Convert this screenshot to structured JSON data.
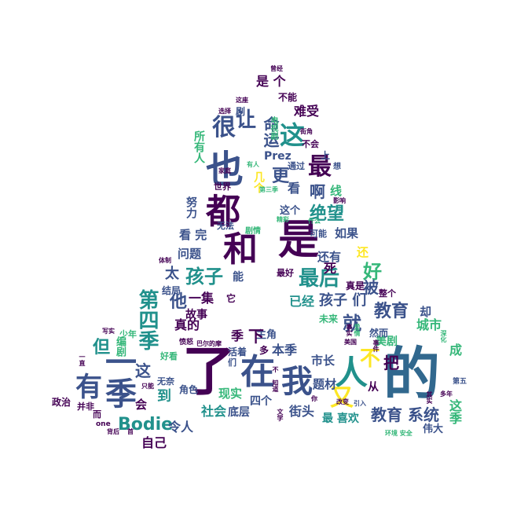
{
  "title": "",
  "palette": {
    "dark_purple": "#440154",
    "indigo": "#3b528b",
    "blue": "#31688e",
    "teal": "#21918c",
    "green": "#35b779",
    "lime": "#90d743",
    "yellow": "#fde725"
  },
  "words": [
    {
      "text": "的",
      "color": "#31688e"
    },
    {
      "text": "了",
      "color": "#440154"
    },
    {
      "text": "是",
      "color": "#440154"
    },
    {
      "text": "和",
      "color": "#440154"
    },
    {
      "text": "都",
      "color": "#440154"
    },
    {
      "text": "也",
      "color": "#3b528b"
    },
    {
      "text": "在",
      "color": "#3b528b"
    },
    {
      "text": "我",
      "color": "#3b528b"
    },
    {
      "text": "人",
      "color": "#21918c"
    },
    {
      "text": "一季",
      "color": "#3b528b"
    },
    {
      "text": "有",
      "color": "#3b528b"
    },
    {
      "text": "最",
      "color": "#440154"
    },
    {
      "text": "这",
      "color": "#21918c"
    },
    {
      "text": "很",
      "color": "#3b528b"
    },
    {
      "text": "让",
      "color": "#3b528b"
    },
    {
      "text": "命运",
      "color": "#3b528b"
    },
    {
      "text": "又",
      "color": "#fde725"
    },
    {
      "text": "不",
      "color": "#fde725"
    },
    {
      "text": "教育",
      "color": "#3b528b"
    },
    {
      "text": "教育 系统",
      "color": "#3b528b"
    },
    {
      "text": "孩子",
      "color": "#21918c"
    },
    {
      "text": "孩子 们",
      "color": "#3b528b"
    },
    {
      "text": "最后",
      "color": "#21918c"
    },
    {
      "text": "好",
      "color": "#35b779"
    },
    {
      "text": "就",
      "color": "#3b528b"
    },
    {
      "text": "被",
      "color": "#3b528b"
    },
    {
      "text": "第四季",
      "color": "#21918c"
    },
    {
      "text": "但",
      "color": "#21918c"
    },
    {
      "text": "这",
      "color": "#3b528b"
    },
    {
      "text": "到",
      "color": "#21918c"
    },
    {
      "text": "Bodie",
      "color": "#21918c"
    },
    {
      "text": "会",
      "color": "#440154"
    },
    {
      "text": "自己",
      "color": "#440154"
    },
    {
      "text": "令人",
      "color": "#3b528b"
    },
    {
      "text": "社会",
      "color": "#21918c"
    },
    {
      "text": "底层",
      "color": "#3b528b"
    },
    {
      "text": "街头",
      "color": "#3b528b"
    },
    {
      "text": "四个",
      "color": "#3b528b"
    },
    {
      "text": "题材",
      "color": "#3b528b"
    },
    {
      "text": "最 喜欢",
      "color": "#21918c"
    },
    {
      "text": "伟大",
      "color": "#3b528b"
    },
    {
      "text": "这季",
      "color": "#35b779"
    },
    {
      "text": "成",
      "color": "#35b779"
    },
    {
      "text": "城市",
      "color": "#35b779"
    },
    {
      "text": "美剧",
      "color": "#35b779"
    },
    {
      "text": "却",
      "color": "#3b528b"
    },
    {
      "text": "然而",
      "color": "#3b528b"
    },
    {
      "text": "本季",
      "color": "#3b528b"
    },
    {
      "text": "市长",
      "color": "#3b528b"
    },
    {
      "text": "主角",
      "color": "#3b528b"
    },
    {
      "text": "下",
      "color": "#440154"
    },
    {
      "text": "季",
      "color": "#440154"
    },
    {
      "text": "多",
      "color": "#440154"
    },
    {
      "text": "一集",
      "color": "#440154"
    },
    {
      "text": "它",
      "color": "#440154"
    },
    {
      "text": "能",
      "color": "#3b528b"
    },
    {
      "text": "他",
      "color": "#3b528b"
    },
    {
      "text": "真的",
      "color": "#440154"
    },
    {
      "text": "故事",
      "color": "#440154"
    },
    {
      "text": "结局",
      "color": "#3b528b"
    },
    {
      "text": "太",
      "color": "#3b528b"
    },
    {
      "text": "问题",
      "color": "#3b528b"
    },
    {
      "text": "看 完",
      "color": "#3b528b"
    },
    {
      "text": "努力",
      "color": "#3b528b"
    },
    {
      "text": "世界",
      "color": "#440154"
    },
    {
      "text": "几个",
      "color": "#fde725"
    },
    {
      "text": "更",
      "color": "#3b528b"
    },
    {
      "text": "看",
      "color": "#3b528b"
    },
    {
      "text": "啊",
      "color": "#3b528b"
    },
    {
      "text": "线",
      "color": "#35b779"
    },
    {
      "text": "Prez",
      "color": "#3b528b"
    },
    {
      "text": "上",
      "color": "#3b528b"
    },
    {
      "text": "通过",
      "color": "#3b528b"
    },
    {
      "text": "不会",
      "color": "#440154"
    },
    {
      "text": "是 个",
      "color": "#440154"
    },
    {
      "text": "不能",
      "color": "#440154"
    },
    {
      "text": "难受",
      "color": "#440154"
    },
    {
      "text": "剧",
      "color": "#3b528b"
    },
    {
      "text": "所有人",
      "color": "#35b779"
    },
    {
      "text": "电视剧",
      "color": "#35b779"
    },
    {
      "text": "绝望",
      "color": "#21918c"
    },
    {
      "text": "这个",
      "color": "#3b528b"
    },
    {
      "text": "如果",
      "color": "#3b528b"
    },
    {
      "text": "可能",
      "color": "#3b528b"
    },
    {
      "text": "还有",
      "color": "#3b528b"
    },
    {
      "text": "还",
      "color": "#fde725"
    },
    {
      "text": "死",
      "color": "#440154"
    },
    {
      "text": "真是",
      "color": "#440154"
    },
    {
      "text": "最好",
      "color": "#440154"
    },
    {
      "text": "已经",
      "color": "#21918c"
    },
    {
      "text": "未来",
      "color": "#35b779"
    },
    {
      "text": "整个",
      "color": "#440154"
    },
    {
      "text": "把",
      "color": "#440154"
    },
    {
      "text": "从",
      "color": "#440154"
    },
    {
      "text": "无法",
      "color": "#3b528b"
    },
    {
      "text": "剧情",
      "color": "#35b779"
    },
    {
      "text": "少年",
      "color": "#35b779"
    },
    {
      "text": "编剧",
      "color": "#35b779"
    },
    {
      "text": "好看",
      "color": "#35b779"
    },
    {
      "text": "无奈",
      "color": "#3b528b"
    },
    {
      "text": "角色",
      "color": "#3b528b"
    },
    {
      "text": "现实",
      "color": "#35b779"
    },
    {
      "text": "活着",
      "color": "#3b528b"
    },
    {
      "text": "们",
      "color": "#3b528b"
    },
    {
      "text": "巴尔的摩",
      "color": "#440154"
    },
    {
      "text": "愤怒",
      "color": "#440154"
    },
    {
      "text": "政治",
      "color": "#440154"
    },
    {
      "text": "并非",
      "color": "#440154"
    },
    {
      "text": "one",
      "color": "#440154"
    },
    {
      "text": "而",
      "color": "#440154"
    },
    {
      "text": "背后",
      "color": "#440154"
    },
    {
      "text": "环境 安全",
      "color": "#35b779"
    },
    {
      "text": "第五",
      "color": "#3b528b"
    },
    {
      "text": "引入",
      "color": "#3b528b"
    },
    {
      "text": "美国",
      "color": "#440154"
    },
    {
      "text": "曾经",
      "color": "#440154"
    },
    {
      "text": "选择",
      "color": "#440154"
    },
    {
      "text": "这座",
      "color": "#440154"
    },
    {
      "text": "家庭",
      "color": "#440154"
    },
    {
      "text": "体制",
      "color": "#440154"
    },
    {
      "text": "写实",
      "color": "#440154"
    },
    {
      "text": "街角",
      "color": "#440154"
    },
    {
      "text": "想",
      "color": "#3b528b"
    },
    {
      "text": "影响",
      "color": "#440154"
    },
    {
      "text": "精彩",
      "color": "#35b779"
    },
    {
      "text": "什么",
      "color": "#35b779"
    },
    {
      "text": "第三季",
      "color": "#35b779"
    },
    {
      "text": "有人",
      "color": "#35b779"
    },
    {
      "text": "不 知道",
      "color": "#440154"
    },
    {
      "text": "只能",
      "color": "#440154"
    },
    {
      "text": "文学",
      "color": "#440154"
    },
    {
      "text": "你",
      "color": "#440154"
    },
    {
      "text": "改变",
      "color": "#440154"
    },
    {
      "text": "爱情",
      "color": "#35b779"
    },
    {
      "text": "事实",
      "color": "#440154"
    },
    {
      "text": "深化",
      "color": "#35b779"
    },
    {
      "text": "一直",
      "color": "#440154"
    },
    {
      "text": "首",
      "color": "#440154"
    },
    {
      "text": "多年",
      "color": "#440154"
    },
    {
      "text": "事件",
      "color": "#440154"
    },
    {
      "text": "其实",
      "color": "#440154"
    }
  ]
}
